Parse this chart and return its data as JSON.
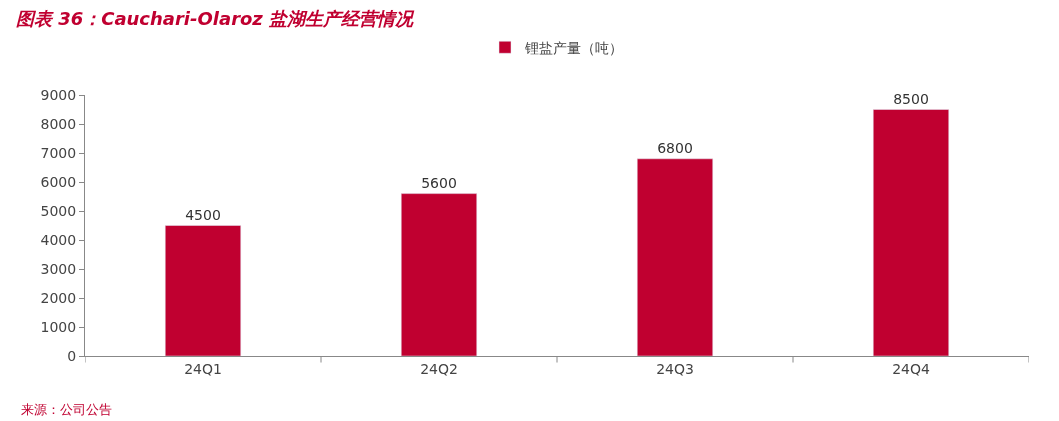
{
  "chart_data": {
    "type": "bar",
    "title": "图表 36：Cauchari-Olaroz 盐湖生产经营情况",
    "categories": [
      "24Q1",
      "24Q2",
      "24Q3",
      "24Q4"
    ],
    "series": [
      {
        "name": "锂盐产量（吨）",
        "color": "#c00030",
        "values": [
          4500,
          5600,
          6800,
          8500
        ]
      }
    ],
    "ylim": [
      0,
      9000
    ],
    "yticks": [
      0,
      1000,
      2000,
      3000,
      4000,
      5000,
      6000,
      7000,
      8000,
      9000
    ],
    "data_labels": true,
    "legend": "top",
    "annotations": [
      "来源：公司公告"
    ]
  }
}
